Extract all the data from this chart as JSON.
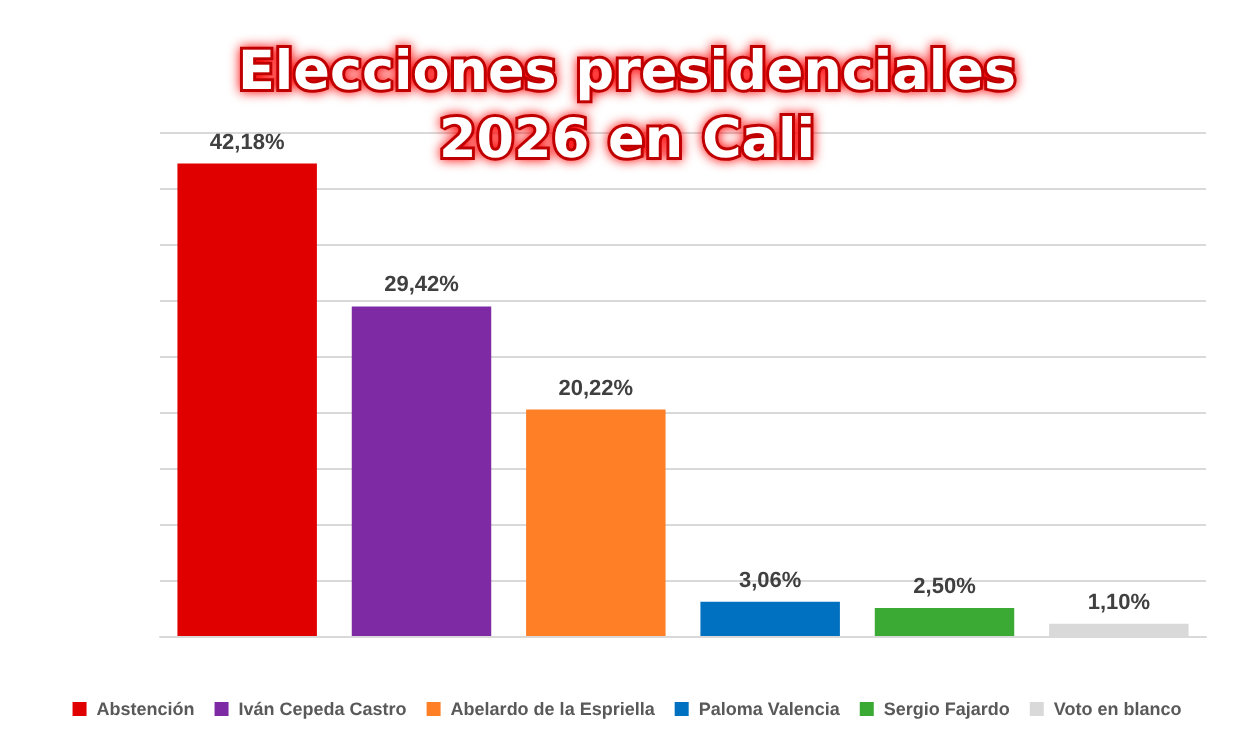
{
  "chart_data": {
    "type": "bar",
    "title": "Elecciones presidenciales\n2026 en Cali",
    "categories": [
      null,
      null,
      null,
      null,
      null,
      null
    ],
    "stacked": true,
    "relative": false,
    "ylim": [
      0,
      45
    ],
    "yticks": [
      0,
      5,
      10,
      15,
      20,
      25,
      30,
      35,
      40,
      45
    ],
    "tick_labels": false,
    "grid": "y",
    "legend": "bottom",
    "series": [
      {
        "name": "Abstención",
        "color": "#e00000",
        "values": [
          42.18,
          null,
          null,
          null,
          null,
          null
        ],
        "value_labels": [
          "42,18%",
          null,
          null,
          null,
          null,
          null
        ]
      },
      {
        "name": "Iván Cepeda Castro",
        "color": "#7f2aa5",
        "values": [
          null,
          29.42,
          null,
          null,
          null,
          null
        ],
        "value_labels": [
          null,
          "29,42%",
          null,
          null,
          null,
          null
        ]
      },
      {
        "name": "Abelardo de la Espriella",
        "color": "#ff7f27",
        "values": [
          null,
          null,
          20.22,
          null,
          null,
          null
        ],
        "value_labels": [
          null,
          null,
          "20,22%",
          null,
          null,
          null
        ]
      },
      {
        "name": "Paloma Valencia",
        "color": "#0070c0",
        "values": [
          null,
          null,
          null,
          3.06,
          null,
          null
        ],
        "value_labels": [
          null,
          null,
          null,
          "3,06%",
          null,
          null
        ]
      },
      {
        "name": "Sergio Fajardo",
        "color": "#3aaa35",
        "values": [
          null,
          null,
          null,
          null,
          2.5,
          null
        ],
        "value_labels": [
          null,
          null,
          null,
          null,
          "2,50%",
          null
        ]
      },
      {
        "name": "Voto en blanco",
        "color": "#d9d9d9",
        "values": [
          null,
          null,
          null,
          null,
          null,
          1.1
        ],
        "value_labels": [
          null,
          null,
          null,
          null,
          null,
          "1,10%"
        ]
      }
    ]
  }
}
